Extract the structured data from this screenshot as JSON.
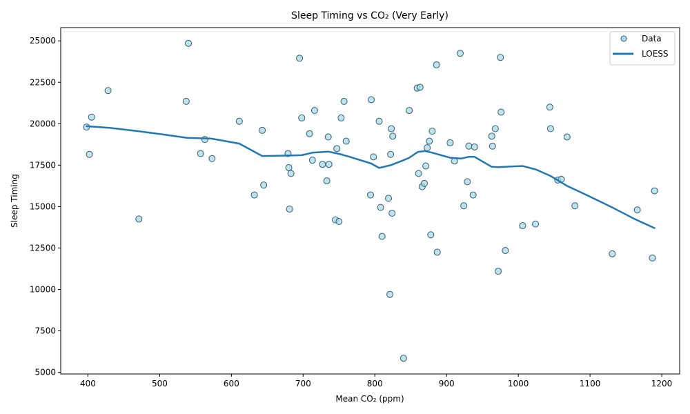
{
  "chart_data": {
    "type": "scatter",
    "title": "Sleep Timing vs CO₂ (Very Early)",
    "xlabel": "Mean CO₂ (ppm)",
    "ylabel": "Sleep Timing",
    "xlim": [
      362,
      1225
    ],
    "ylim": [
      4900,
      25800
    ],
    "xticks": [
      400,
      500,
      600,
      700,
      800,
      900,
      1000,
      1100,
      1200
    ],
    "yticks": [
      5000,
      7500,
      10000,
      12500,
      15000,
      17500,
      20000,
      22500,
      25000
    ],
    "grid": false,
    "legend_position": "top-right",
    "series": [
      {
        "name": "Data",
        "kind": "scatter",
        "color": "#add8e6",
        "edge_color": "#2a5d78",
        "points": [
          [
            398,
            19800
          ],
          [
            402,
            18150
          ],
          [
            405,
            20400
          ],
          [
            428,
            22000
          ],
          [
            471,
            14250
          ],
          [
            537,
            21350
          ],
          [
            540,
            24850
          ],
          [
            557,
            18200
          ],
          [
            563,
            19050
          ],
          [
            573,
            17900
          ],
          [
            611,
            20150
          ],
          [
            632,
            15700
          ],
          [
            643,
            19600
          ],
          [
            645,
            16300
          ],
          [
            679,
            18200
          ],
          [
            680,
            17350
          ],
          [
            681,
            14850
          ],
          [
            683,
            17000
          ],
          [
            695,
            23950
          ],
          [
            698,
            20350
          ],
          [
            709,
            19400
          ],
          [
            713,
            17800
          ],
          [
            716,
            20800
          ],
          [
            727,
            17550
          ],
          [
            733,
            16550
          ],
          [
            735,
            19200
          ],
          [
            736,
            17550
          ],
          [
            745,
            14200
          ],
          [
            747,
            18500
          ],
          [
            750,
            14100
          ],
          [
            753,
            20350
          ],
          [
            757,
            21350
          ],
          [
            760,
            18950
          ],
          [
            794,
            15700
          ],
          [
            795,
            21450
          ],
          [
            798,
            18000
          ],
          [
            806,
            20150
          ],
          [
            808,
            14950
          ],
          [
            810,
            13200
          ],
          [
            819,
            15500
          ],
          [
            821,
            9700
          ],
          [
            822,
            18150
          ],
          [
            823,
            19700
          ],
          [
            824,
            14600
          ],
          [
            825,
            19250
          ],
          [
            840,
            5850
          ],
          [
            848,
            20800
          ],
          [
            859,
            22150
          ],
          [
            861,
            17000
          ],
          [
            863,
            22200
          ],
          [
            866,
            16200
          ],
          [
            869,
            16400
          ],
          [
            871,
            17450
          ],
          [
            873,
            18550
          ],
          [
            876,
            18950
          ],
          [
            878,
            13300
          ],
          [
            880,
            19550
          ],
          [
            886,
            23550
          ],
          [
            887,
            12250
          ],
          [
            905,
            18850
          ],
          [
            911,
            17750
          ],
          [
            919,
            24250
          ],
          [
            924,
            15050
          ],
          [
            929,
            16500
          ],
          [
            931,
            18650
          ],
          [
            937,
            15700
          ],
          [
            939,
            18600
          ],
          [
            963,
            19250
          ],
          [
            964,
            18650
          ],
          [
            968,
            19700
          ],
          [
            972,
            11100
          ],
          [
            975,
            24000
          ],
          [
            976,
            20700
          ],
          [
            982,
            12350
          ],
          [
            1006,
            13850
          ],
          [
            1024,
            13950
          ],
          [
            1044,
            21000
          ],
          [
            1045,
            19700
          ],
          [
            1055,
            16600
          ],
          [
            1060,
            16650
          ],
          [
            1068,
            19200
          ],
          [
            1079,
            15050
          ],
          [
            1131,
            12150
          ],
          [
            1166,
            14800
          ],
          [
            1187,
            11900
          ],
          [
            1190,
            15950
          ]
        ]
      },
      {
        "name": "LOESS",
        "kind": "line",
        "color": "#1f77b4",
        "points": [
          [
            398,
            19850
          ],
          [
            430,
            19750
          ],
          [
            470,
            19550
          ],
          [
            505,
            19350
          ],
          [
            538,
            19150
          ],
          [
            572,
            19100
          ],
          [
            611,
            18800
          ],
          [
            643,
            18050
          ],
          [
            680,
            18080
          ],
          [
            698,
            18100
          ],
          [
            713,
            18250
          ],
          [
            735,
            18320
          ],
          [
            750,
            18180
          ],
          [
            765,
            18000
          ],
          [
            795,
            17600
          ],
          [
            806,
            17330
          ],
          [
            822,
            17500
          ],
          [
            840,
            17800
          ],
          [
            848,
            17950
          ],
          [
            860,
            18300
          ],
          [
            870,
            18350
          ],
          [
            880,
            18250
          ],
          [
            905,
            17950
          ],
          [
            920,
            17900
          ],
          [
            931,
            18000
          ],
          [
            939,
            18000
          ],
          [
            963,
            17400
          ],
          [
            972,
            17380
          ],
          [
            990,
            17420
          ],
          [
            1006,
            17450
          ],
          [
            1024,
            17250
          ],
          [
            1045,
            16850
          ],
          [
            1068,
            16250
          ],
          [
            1100,
            15600
          ],
          [
            1131,
            14950
          ],
          [
            1160,
            14300
          ],
          [
            1190,
            13700
          ]
        ]
      }
    ]
  }
}
